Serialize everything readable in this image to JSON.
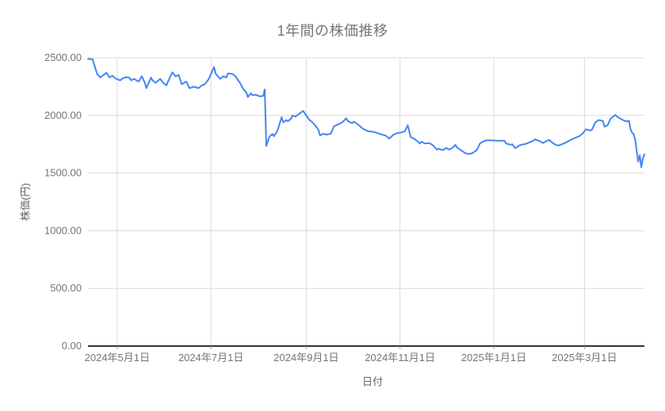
{
  "colors": {
    "line": "#4285f4",
    "gridline": "#dadada",
    "axis_line": "#333333",
    "tick_mark": "#9e9e9e",
    "tick_label": "#757575",
    "title": "#757575",
    "axis_title": "#5f6368",
    "background": "#ffffff"
  },
  "chart_data": {
    "type": "line",
    "title": "1年間の株価推移",
    "xlabel": "日付",
    "ylabel": "株価(円)",
    "grid": true,
    "legend": "none",
    "ylim": [
      0,
      2500
    ],
    "y_tick_interval": 500,
    "y_tick_labels": [
      "0.00",
      "500.00",
      "1000.00",
      "1500.00",
      "2000.00",
      "2500.00"
    ],
    "x_range": [
      "2024-04-12",
      "2025-04-09"
    ],
    "x_ticks": [
      {
        "date": "2024-05-01",
        "label": "2024年5月1日"
      },
      {
        "date": "2024-07-01",
        "label": "2024年7月1日"
      },
      {
        "date": "2024-09-01",
        "label": "2024年9月1日"
      },
      {
        "date": "2024-11-01",
        "label": "2024年11月1日"
      },
      {
        "date": "2025-01-01",
        "label": "2025年1月1日"
      },
      {
        "date": "2025-03-01",
        "label": "2025年3月1日"
      }
    ],
    "series": [
      {
        "name": "株価",
        "color": "#4285f4",
        "points": [
          [
            "2024-04-12",
            2490
          ],
          [
            "2024-04-15",
            2488
          ],
          [
            "2024-04-17",
            2400
          ],
          [
            "2024-04-18",
            2360
          ],
          [
            "2024-04-20",
            2330
          ],
          [
            "2024-04-22",
            2350
          ],
          [
            "2024-04-24",
            2370
          ],
          [
            "2024-04-26",
            2330
          ],
          [
            "2024-04-28",
            2345
          ],
          [
            "2024-04-30",
            2320
          ],
          [
            "2024-05-03",
            2305
          ],
          [
            "2024-05-05",
            2325
          ],
          [
            "2024-05-07",
            2332
          ],
          [
            "2024-05-09",
            2327
          ],
          [
            "2024-05-10",
            2305
          ],
          [
            "2024-05-12",
            2317
          ],
          [
            "2024-05-15",
            2294
          ],
          [
            "2024-05-17",
            2339
          ],
          [
            "2024-05-19",
            2283
          ],
          [
            "2024-05-20",
            2237
          ],
          [
            "2024-05-23",
            2328
          ],
          [
            "2024-05-24",
            2305
          ],
          [
            "2024-05-26",
            2283
          ],
          [
            "2024-05-29",
            2317
          ],
          [
            "2024-05-31",
            2283
          ],
          [
            "2024-06-02",
            2260
          ],
          [
            "2024-06-05",
            2351
          ],
          [
            "2024-06-06",
            2374
          ],
          [
            "2024-06-08",
            2339
          ],
          [
            "2024-06-10",
            2351
          ],
          [
            "2024-06-12",
            2271
          ],
          [
            "2024-06-15",
            2294
          ],
          [
            "2024-06-17",
            2237
          ],
          [
            "2024-06-20",
            2249
          ],
          [
            "2024-06-23",
            2237
          ],
          [
            "2024-06-25",
            2260
          ],
          [
            "2024-06-27",
            2271
          ],
          [
            "2024-06-29",
            2305
          ],
          [
            "2024-06-30",
            2328
          ],
          [
            "2024-07-03",
            2420
          ],
          [
            "2024-07-04",
            2363
          ],
          [
            "2024-07-07",
            2317
          ],
          [
            "2024-07-09",
            2340
          ],
          [
            "2024-07-11",
            2330
          ],
          [
            "2024-07-12",
            2365
          ],
          [
            "2024-07-15",
            2360
          ],
          [
            "2024-07-17",
            2340
          ],
          [
            "2024-07-18",
            2318
          ],
          [
            "2024-07-20",
            2280
          ],
          [
            "2024-07-22",
            2230
          ],
          [
            "2024-07-24",
            2200
          ],
          [
            "2024-07-25",
            2160
          ],
          [
            "2024-07-27",
            2193
          ],
          [
            "2024-07-28",
            2175
          ],
          [
            "2024-07-30",
            2180
          ],
          [
            "2024-08-02",
            2165
          ],
          [
            "2024-08-04",
            2170
          ],
          [
            "2024-08-05",
            2225
          ],
          [
            "2024-08-06",
            1735
          ],
          [
            "2024-08-08",
            1815
          ],
          [
            "2024-08-10",
            1840
          ],
          [
            "2024-08-11",
            1820
          ],
          [
            "2024-08-13",
            1860
          ],
          [
            "2024-08-14",
            1900
          ],
          [
            "2024-08-16",
            1985
          ],
          [
            "2024-08-17",
            1940
          ],
          [
            "2024-08-19",
            1960
          ],
          [
            "2024-08-20",
            1950
          ],
          [
            "2024-08-22",
            1970
          ],
          [
            "2024-08-23",
            2000
          ],
          [
            "2024-08-25",
            1990
          ],
          [
            "2024-08-27",
            2010
          ],
          [
            "2024-08-30",
            2040
          ],
          [
            "2024-09-01",
            2000
          ],
          [
            "2024-09-03",
            1963
          ],
          [
            "2024-09-05",
            1941
          ],
          [
            "2024-09-08",
            1894
          ],
          [
            "2024-09-09",
            1872
          ],
          [
            "2024-09-10",
            1826
          ],
          [
            "2024-09-12",
            1842
          ],
          [
            "2024-09-14",
            1833
          ],
          [
            "2024-09-17",
            1842
          ],
          [
            "2024-09-19",
            1906
          ],
          [
            "2024-09-21",
            1918
          ],
          [
            "2024-09-23",
            1929
          ],
          [
            "2024-09-25",
            1947
          ],
          [
            "2024-09-27",
            1975
          ],
          [
            "2024-09-28",
            1952
          ],
          [
            "2024-10-01",
            1933
          ],
          [
            "2024-10-02",
            1947
          ],
          [
            "2024-10-05",
            1918
          ],
          [
            "2024-10-08",
            1884
          ],
          [
            "2024-10-10",
            1872
          ],
          [
            "2024-10-11",
            1864
          ],
          [
            "2024-10-15",
            1857
          ],
          [
            "2024-10-19",
            1839
          ],
          [
            "2024-10-23",
            1823
          ],
          [
            "2024-10-25",
            1800
          ],
          [
            "2024-10-28",
            1835
          ],
          [
            "2024-10-30",
            1846
          ],
          [
            "2024-11-02",
            1853
          ],
          [
            "2024-11-04",
            1860
          ],
          [
            "2024-11-06",
            1915
          ],
          [
            "2024-11-08",
            1812
          ],
          [
            "2024-11-10",
            1800
          ],
          [
            "2024-11-12",
            1780
          ],
          [
            "2024-11-14",
            1757
          ],
          [
            "2024-11-15",
            1773
          ],
          [
            "2024-11-17",
            1757
          ],
          [
            "2024-11-20",
            1761
          ],
          [
            "2024-11-22",
            1746
          ],
          [
            "2024-11-25",
            1705
          ],
          [
            "2024-11-26",
            1711
          ],
          [
            "2024-11-29",
            1700
          ],
          [
            "2024-12-01",
            1718
          ],
          [
            "2024-12-03",
            1705
          ],
          [
            "2024-12-05",
            1718
          ],
          [
            "2024-12-07",
            1746
          ],
          [
            "2024-12-08",
            1723
          ],
          [
            "2024-12-10",
            1705
          ],
          [
            "2024-12-13",
            1677
          ],
          [
            "2024-12-15",
            1666
          ],
          [
            "2024-12-18",
            1672
          ],
          [
            "2024-12-21",
            1700
          ],
          [
            "2024-12-23",
            1757
          ],
          [
            "2024-12-26",
            1780
          ],
          [
            "2024-12-28",
            1784
          ],
          [
            "2024-12-31",
            1784
          ],
          [
            "2025-01-04",
            1780
          ],
          [
            "2025-01-08",
            1780
          ],
          [
            "2025-01-09",
            1757
          ],
          [
            "2025-01-12",
            1746
          ],
          [
            "2025-01-13",
            1751
          ],
          [
            "2025-01-15",
            1716
          ],
          [
            "2025-01-18",
            1743
          ],
          [
            "2025-01-22",
            1754
          ],
          [
            "2025-01-26",
            1777
          ],
          [
            "2025-01-28",
            1793
          ],
          [
            "2025-01-31",
            1777
          ],
          [
            "2025-02-02",
            1761
          ],
          [
            "2025-02-04",
            1777
          ],
          [
            "2025-02-06",
            1788
          ],
          [
            "2025-02-08",
            1766
          ],
          [
            "2025-02-10",
            1747
          ],
          [
            "2025-02-12",
            1738
          ],
          [
            "2025-02-15",
            1754
          ],
          [
            "2025-02-17",
            1766
          ],
          [
            "2025-02-20",
            1788
          ],
          [
            "2025-02-22",
            1800
          ],
          [
            "2025-02-26",
            1823
          ],
          [
            "2025-02-28",
            1846
          ],
          [
            "2025-03-02",
            1880
          ],
          [
            "2025-03-05",
            1869
          ],
          [
            "2025-03-06",
            1880
          ],
          [
            "2025-03-08",
            1937
          ],
          [
            "2025-03-10",
            1960
          ],
          [
            "2025-03-13",
            1953
          ],
          [
            "2025-03-14",
            1903
          ],
          [
            "2025-03-16",
            1915
          ],
          [
            "2025-03-18",
            1971
          ],
          [
            "2025-03-21",
            2005
          ],
          [
            "2025-03-23",
            1983
          ],
          [
            "2025-03-26",
            1960
          ],
          [
            "2025-03-28",
            1949
          ],
          [
            "2025-03-30",
            1953
          ],
          [
            "2025-03-31",
            1880
          ],
          [
            "2025-04-01",
            1850
          ],
          [
            "2025-04-02",
            1840
          ],
          [
            "2025-04-03",
            1790
          ],
          [
            "2025-04-04",
            1690
          ],
          [
            "2025-04-05",
            1600
          ],
          [
            "2025-04-06",
            1655
          ],
          [
            "2025-04-07",
            1550
          ],
          [
            "2025-04-08",
            1630
          ],
          [
            "2025-04-09",
            1663
          ]
        ]
      }
    ]
  }
}
